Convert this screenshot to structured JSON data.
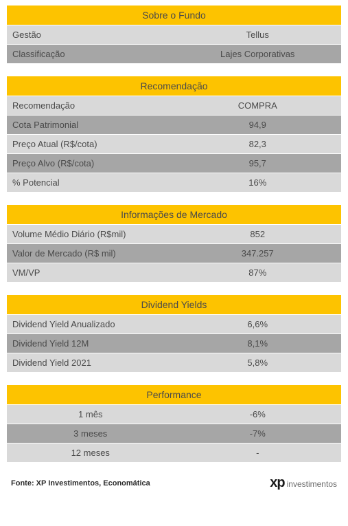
{
  "colors": {
    "header_bg": "#fdc300",
    "row_light_bg": "#d9d9d9",
    "row_dark_bg": "#a6a6a6",
    "text": "#4a4a4a",
    "border": "#ffffff"
  },
  "font": {
    "header_size": 14,
    "row_size": 13,
    "source_size": 11
  },
  "sections": [
    {
      "title": "Sobre o Fundo",
      "layout": "label-value",
      "rows": [
        {
          "label": "Gestão",
          "value": "Tellus",
          "shade": "light"
        },
        {
          "label": "Classificação",
          "value": "Lajes Corporativas",
          "shade": "dark"
        }
      ]
    },
    {
      "title": "Recomendação",
      "layout": "label-value",
      "rows": [
        {
          "label": "Recomendação",
          "value": "COMPRA",
          "shade": "light"
        },
        {
          "label": "Cota Patrimonial",
          "value": "94,9",
          "shade": "dark"
        },
        {
          "label": "Preço Atual (R$/cota)",
          "value": "82,3",
          "shade": "light"
        },
        {
          "label": "Preço Alvo (R$/cota)",
          "value": "95,7",
          "shade": "dark"
        },
        {
          "label": "% Potencial",
          "value": "16%",
          "shade": "light"
        }
      ]
    },
    {
      "title": "Informações de Mercado",
      "layout": "label-value",
      "rows": [
        {
          "label": "Volume Médio Diário (R$mil)",
          "value": "852",
          "shade": "light"
        },
        {
          "label": "Valor de Mercado (R$ mil)",
          "value": "347.257",
          "shade": "dark"
        },
        {
          "label": "VM/VP",
          "value": "87%",
          "shade": "light"
        }
      ]
    },
    {
      "title": "Dividend Yields",
      "layout": "label-value",
      "rows": [
        {
          "label": "Dividend Yield Anualizado",
          "value": "6,6%",
          "shade": "light"
        },
        {
          "label": "Dividend Yield 12M",
          "value": "8,1%",
          "shade": "dark"
        },
        {
          "label": "Dividend Yield 2021",
          "value": "5,8%",
          "shade": "light"
        }
      ]
    },
    {
      "title": "Performance",
      "layout": "center-center",
      "rows": [
        {
          "label": "1 mês",
          "value": "-6%",
          "shade": "light"
        },
        {
          "label": "3 meses",
          "value": "-7%",
          "shade": "dark"
        },
        {
          "label": "12 meses",
          "value": "-",
          "shade": "light"
        }
      ]
    }
  ],
  "footer": {
    "source": "Fonte: XP Investimentos, Economática",
    "logo_prefix": "xp",
    "logo_suffix": "investimentos"
  }
}
